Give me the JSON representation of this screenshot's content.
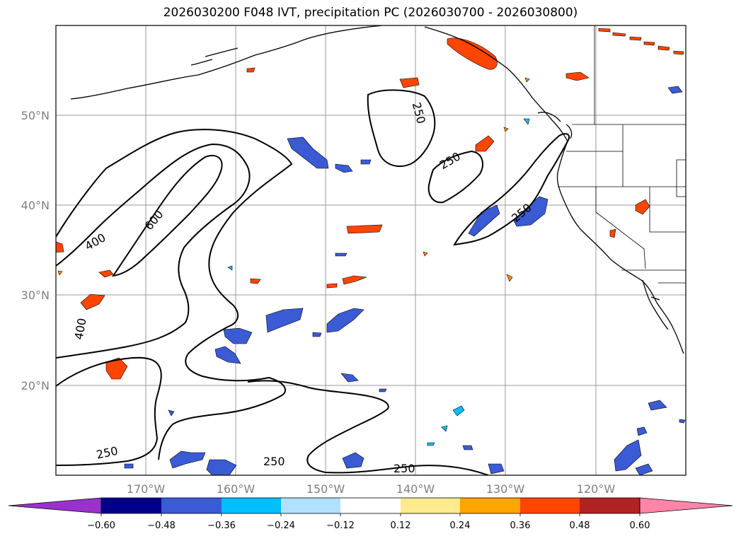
{
  "title": "2026030200 F048 IVT, precipitation PC (2026030700 - 2026030800)",
  "map": {
    "projection": "PlateCarree",
    "lon_range": [
      -180,
      -110
    ],
    "lat_range": [
      10,
      60
    ],
    "gridlines": true,
    "lon_labels": [
      "170°W",
      "160°W",
      "150°W",
      "140°W",
      "130°W",
      "120°W"
    ],
    "lat_labels": [
      "50°N",
      "40°N",
      "30°N",
      "20°N"
    ]
  },
  "contour_labels": [
    "250",
    "250",
    "250",
    "400",
    "400",
    "600",
    "250",
    "250",
    "250"
  ],
  "colorbar": {
    "ticks": [
      "−0.60",
      "−0.48",
      "−0.36",
      "−0.24",
      "−0.12",
      "0.12",
      "0.24",
      "0.36",
      "0.48",
      "0.60"
    ],
    "colors": [
      "#9932cc",
      "#00008b",
      "#3a5bd4",
      "#00bfff",
      "#b0e2ff",
      "#ffffff",
      "#ffea8f",
      "#ffa500",
      "#ff4500",
      "#b22222",
      "#ff85a8"
    ],
    "extend": "both"
  }
}
